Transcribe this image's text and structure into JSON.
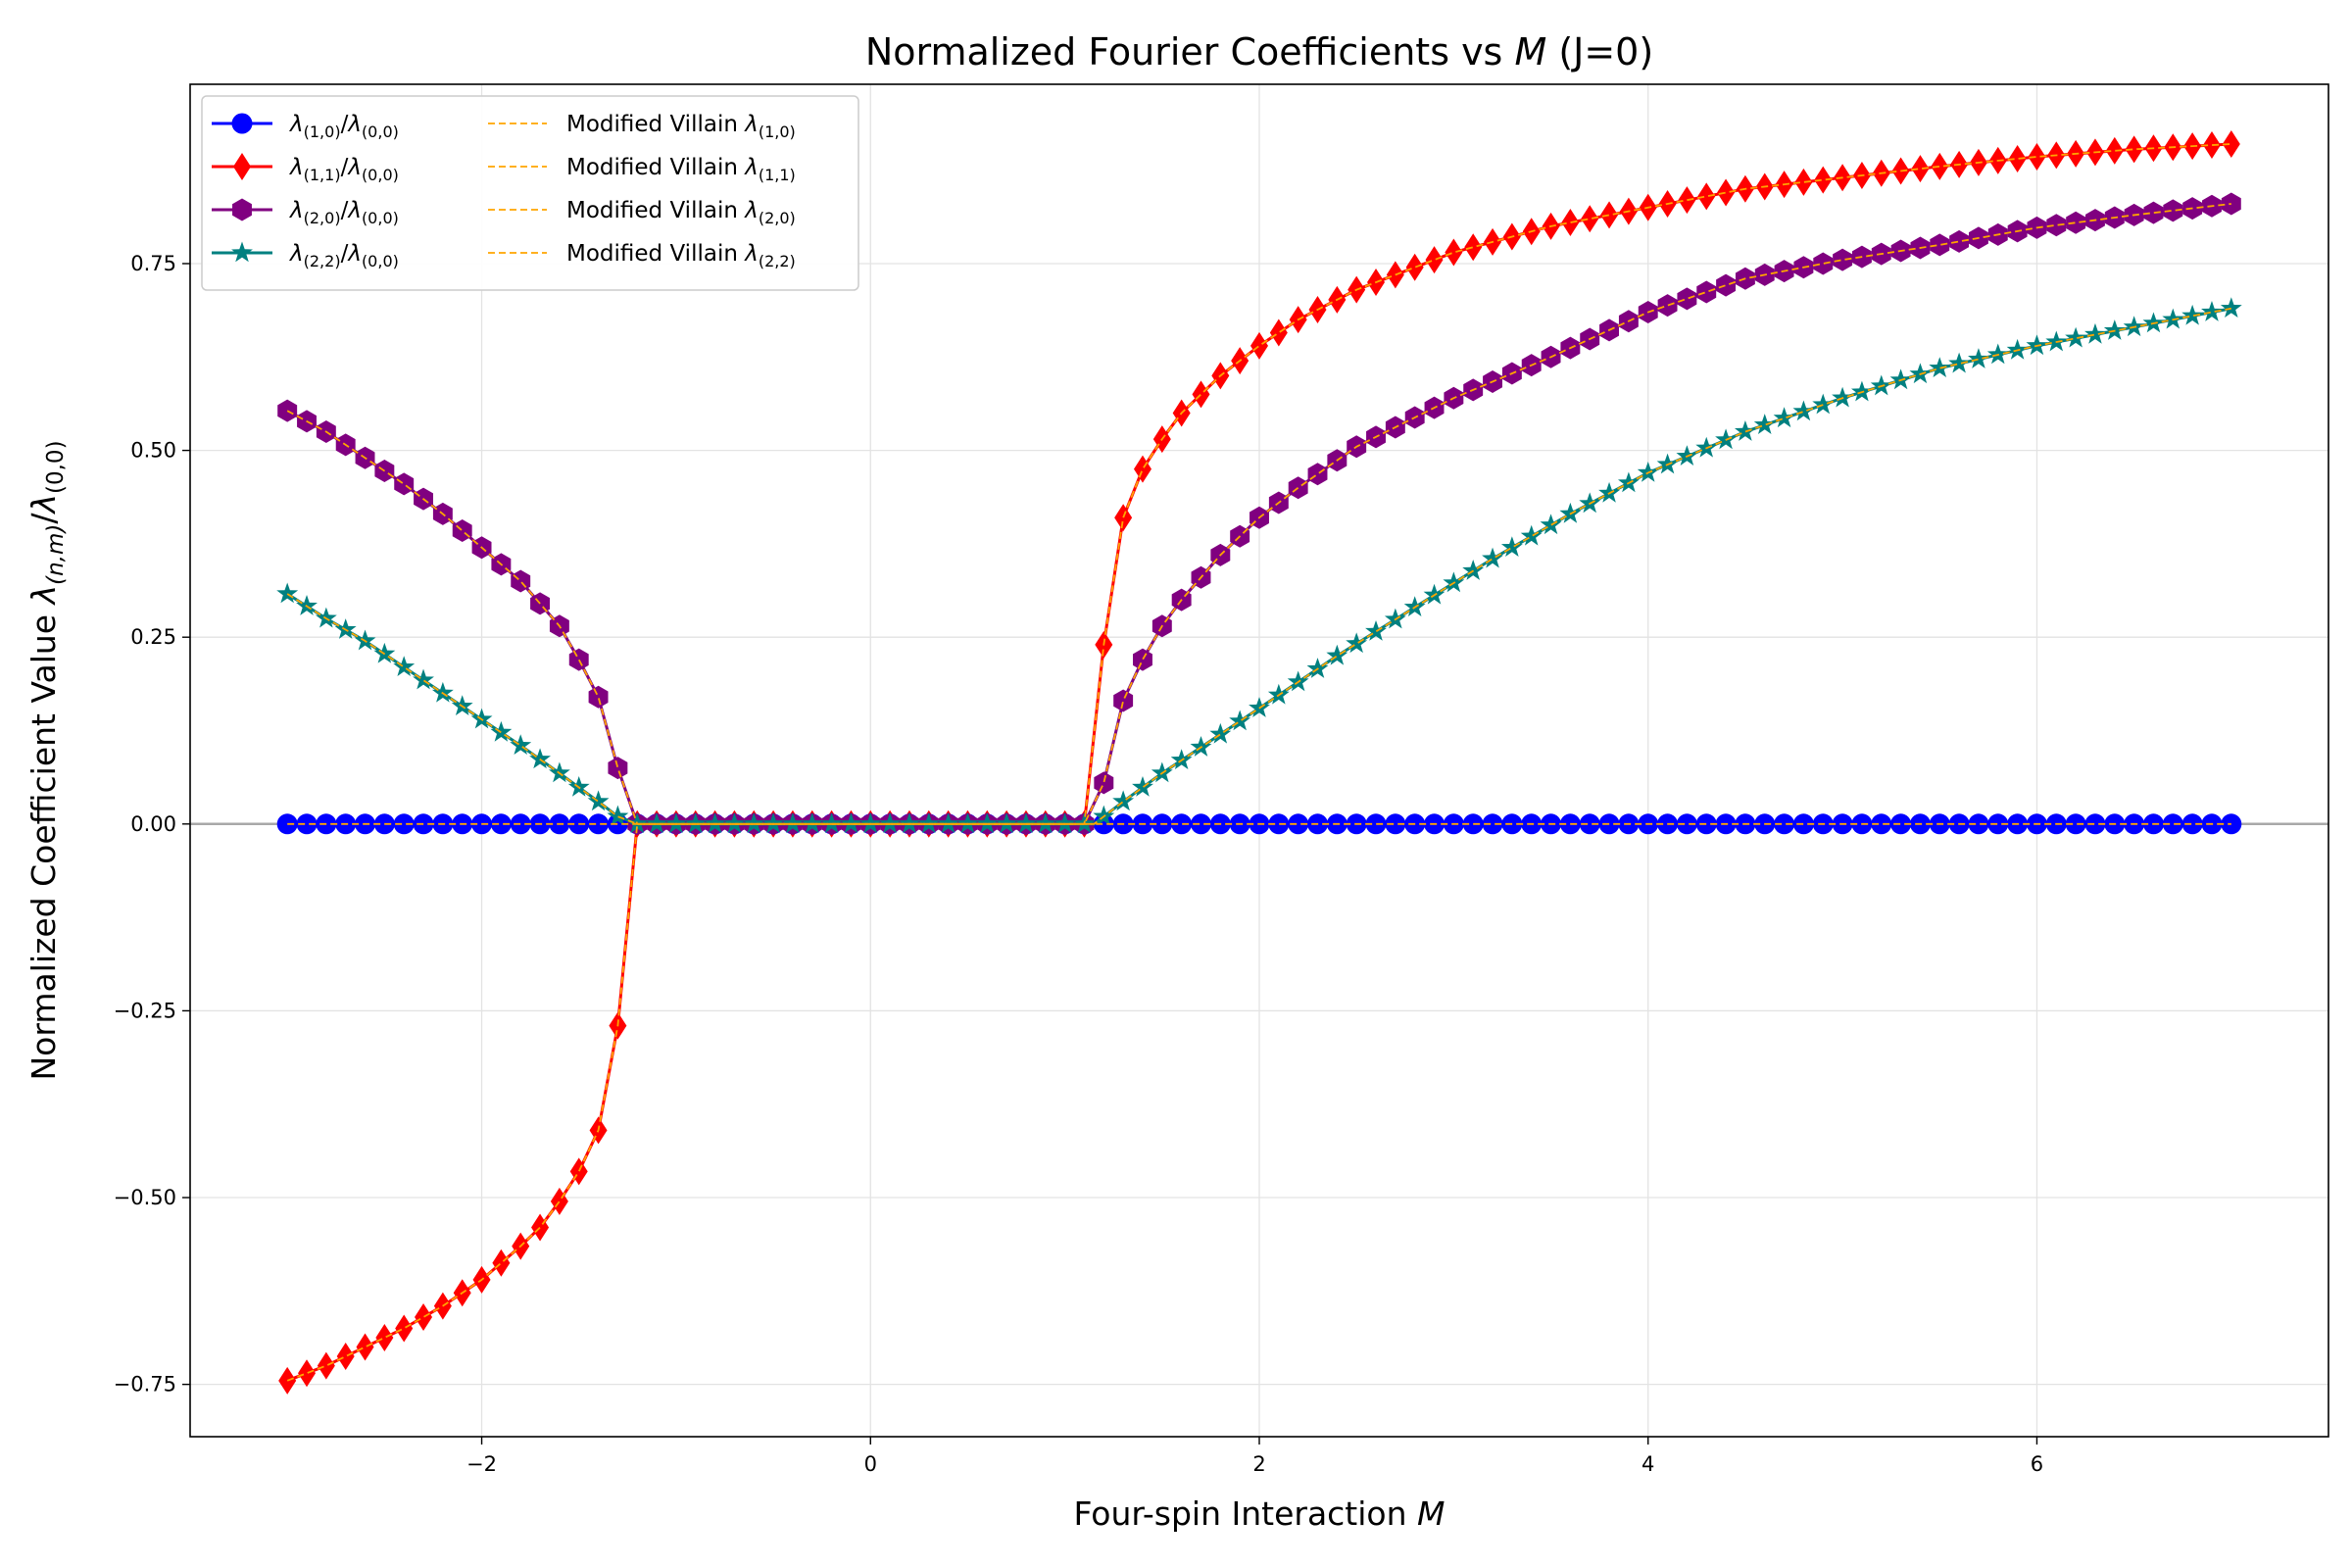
{
  "chart_data": {
    "type": "line",
    "title": "Normalized Fourier Coefficients vs M (J=0)",
    "xlabel": "Four-spin Interaction M",
    "ylabel": "Normalized Coefficient Value λ(n,m)/λ(0,0)",
    "xlim": [
      -3.5,
      7.5
    ],
    "ylim": [
      -0.82,
      0.99
    ],
    "xticks": [
      -2,
      0,
      2,
      4,
      6
    ],
    "yticks": [
      -0.75,
      -0.5,
      -0.25,
      0.0,
      0.25,
      0.5,
      0.75
    ],
    "xtick_labels": [
      "−2",
      "0",
      "2",
      "4",
      "6"
    ],
    "ytick_labels": [
      "−0.75",
      "−0.50",
      "−0.25",
      "0.00",
      "0.25",
      "0.50",
      "0.75"
    ],
    "grid": true,
    "zero_line": true,
    "legend_position": "top-left",
    "legend_columns": 2,
    "x_domain": [
      -3,
      7
    ],
    "num_points": 101,
    "series": [
      {
        "name": "λ(1,0)/λ(0,0)",
        "base": "λ",
        "sub": "(1,0)",
        "over": "/",
        "base2": "λ",
        "sub2": "(0,0)",
        "color": "#0000ff",
        "marker": "circle",
        "points": [
          [
            -3,
            0.0
          ],
          [
            7,
            0.0
          ]
        ]
      },
      {
        "name": "λ(1,1)/λ(0,0)",
        "base": "λ",
        "sub": "(1,1)",
        "over": "/",
        "base2": "λ",
        "sub2": "(0,0)",
        "color": "#ff0000",
        "marker": "diamond",
        "points": [
          [
            -3.0,
            -0.745
          ],
          [
            -2.9,
            -0.735
          ],
          [
            -2.8,
            -0.725
          ],
          [
            -2.6,
            -0.7
          ],
          [
            -2.4,
            -0.675
          ],
          [
            -2.2,
            -0.645
          ],
          [
            -2.0,
            -0.61
          ],
          [
            -1.8,
            -0.565
          ],
          [
            -1.7,
            -0.54
          ],
          [
            -1.6,
            -0.505
          ],
          [
            -1.5,
            -0.465
          ],
          [
            -1.4,
            -0.41
          ],
          [
            -1.3,
            -0.27
          ],
          [
            -1.2,
            0.0
          ],
          [
            1.1,
            0.0
          ],
          [
            1.2,
            0.24
          ],
          [
            1.3,
            0.41
          ],
          [
            1.4,
            0.475
          ],
          [
            1.5,
            0.515
          ],
          [
            1.6,
            0.55
          ],
          [
            1.8,
            0.6
          ],
          [
            2.0,
            0.64
          ],
          [
            2.2,
            0.675
          ],
          [
            2.5,
            0.715
          ],
          [
            3.0,
            0.765
          ],
          [
            3.5,
            0.8
          ],
          [
            4.0,
            0.825
          ],
          [
            4.5,
            0.85
          ],
          [
            5.0,
            0.865
          ],
          [
            5.5,
            0.88
          ],
          [
            6.0,
            0.893
          ],
          [
            6.5,
            0.903
          ],
          [
            7.0,
            0.91
          ]
        ]
      },
      {
        "name": "λ(2,0)/λ(0,0)",
        "base": "λ",
        "sub": "(2,0)",
        "over": "/",
        "base2": "λ",
        "sub2": "(0,0)",
        "color": "#800080",
        "marker": "hexagon",
        "points": [
          [
            -3.0,
            0.553
          ],
          [
            -2.8,
            0.525
          ],
          [
            -2.6,
            0.49
          ],
          [
            -2.4,
            0.455
          ],
          [
            -2.2,
            0.415
          ],
          [
            -2.0,
            0.37
          ],
          [
            -1.8,
            0.325
          ],
          [
            -1.6,
            0.265
          ],
          [
            -1.5,
            0.22
          ],
          [
            -1.4,
            0.17
          ],
          [
            -1.3,
            0.075
          ],
          [
            -1.2,
            0.0
          ],
          [
            1.1,
            0.0
          ],
          [
            1.2,
            0.055
          ],
          [
            1.3,
            0.165
          ],
          [
            1.4,
            0.22
          ],
          [
            1.5,
            0.265
          ],
          [
            1.6,
            0.3
          ],
          [
            1.8,
            0.36
          ],
          [
            2.0,
            0.41
          ],
          [
            2.2,
            0.45
          ],
          [
            2.5,
            0.505
          ],
          [
            3.0,
            0.57
          ],
          [
            3.5,
            0.625
          ],
          [
            4.0,
            0.685
          ],
          [
            4.5,
            0.73
          ],
          [
            5.0,
            0.755
          ],
          [
            5.5,
            0.775
          ],
          [
            6.0,
            0.798
          ],
          [
            6.5,
            0.815
          ],
          [
            7.0,
            0.83
          ]
        ]
      },
      {
        "name": "λ(2,2)/λ(0,0)",
        "base": "λ",
        "sub": "(2,2)",
        "over": "/",
        "base2": "λ",
        "sub2": "(0,0)",
        "color": "#008080",
        "marker": "star",
        "points": [
          [
            -3.0,
            0.308
          ],
          [
            -2.8,
            0.275
          ],
          [
            -2.6,
            0.245
          ],
          [
            -2.4,
            0.21
          ],
          [
            -2.2,
            0.175
          ],
          [
            -2.0,
            0.14
          ],
          [
            -1.8,
            0.105
          ],
          [
            -1.6,
            0.068
          ],
          [
            -1.4,
            0.03
          ],
          [
            -1.3,
            0.01
          ],
          [
            -1.2,
            0.0
          ],
          [
            1.15,
            0.0
          ],
          [
            1.3,
            0.03
          ],
          [
            1.5,
            0.068
          ],
          [
            1.8,
            0.12
          ],
          [
            2.0,
            0.155
          ],
          [
            2.4,
            0.225
          ],
          [
            2.8,
            0.29
          ],
          [
            3.2,
            0.355
          ],
          [
            3.6,
            0.415
          ],
          [
            4.0,
            0.47
          ],
          [
            4.5,
            0.525
          ],
          [
            5.0,
            0.57
          ],
          [
            5.5,
            0.61
          ],
          [
            6.0,
            0.64
          ],
          [
            6.5,
            0.665
          ],
          [
            7.0,
            0.69
          ]
        ]
      },
      {
        "name": "Modified Villain λ(1,0)",
        "base": "Modified Villain λ",
        "sub": "(1,0)",
        "color": "#ffa500",
        "dashed": true,
        "follows": 0
      },
      {
        "name": "Modified Villain λ(1,1)",
        "base": "Modified Villain λ",
        "sub": "(1,1)",
        "color": "#ffa500",
        "dashed": true,
        "follows": 1
      },
      {
        "name": "Modified Villain λ(2,0)",
        "base": "Modified Villain λ",
        "sub": "(2,0)",
        "color": "#ffa500",
        "dashed": true,
        "follows": 2
      },
      {
        "name": "Modified Villain λ(2,2)",
        "base": "Modified Villain λ",
        "sub": "(2,2)",
        "color": "#ffa500",
        "dashed": true,
        "follows": 3
      }
    ]
  }
}
